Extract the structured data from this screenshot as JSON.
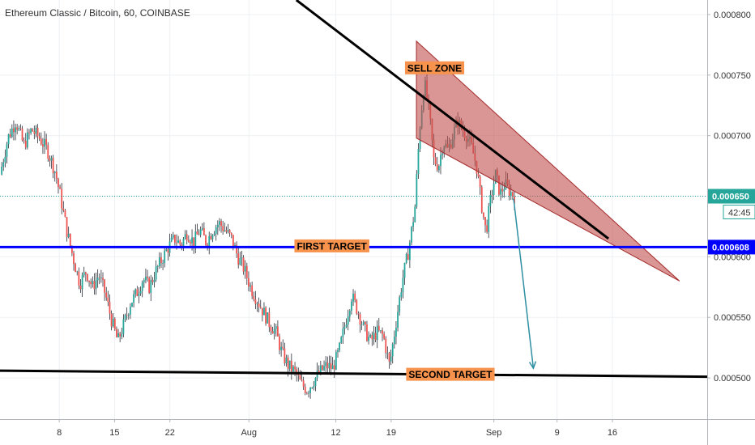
{
  "header": {
    "title": "Ethereum Classic / Bitcoin, 60, COINBASE"
  },
  "chart_data": {
    "type": "candlestick",
    "symbol": "Ethereum Classic / Bitcoin",
    "interval": "60",
    "exchange": "COINBASE",
    "x_ticks": [
      "8",
      "15",
      "22",
      "Aug",
      "12",
      "19",
      "Sep",
      "9",
      "16"
    ],
    "x_tick_days": [
      8,
      15,
      22,
      32,
      43,
      50,
      63,
      71,
      78
    ],
    "y_ticks": [
      "0.000500",
      "0.000550",
      "0.000600",
      "0.000650",
      "0.000700",
      "0.000750",
      "0.000800"
    ],
    "ylim": [
      0.000466,
      0.000812
    ],
    "xlim": [
      0.5,
      90
    ],
    "last_price": "0.000650",
    "countdown": "42:45",
    "first_target_price": "0.000608",
    "price_path": [
      [
        0.5,
        0.000668
      ],
      [
        1.5,
        0.000698
      ],
      [
        2.5,
        0.000712
      ],
      [
        3.5,
        0.000692
      ],
      [
        4.5,
        0.000705
      ],
      [
        5.5,
        0.000698
      ],
      [
        6.5,
        0.000688
      ],
      [
        7.5,
        0.00067
      ],
      [
        8.2,
        0.000648
      ],
      [
        9.0,
        0.00062
      ],
      [
        9.8,
        0.000598
      ],
      [
        10.6,
        0.000578
      ],
      [
        11.4,
        0.000588
      ],
      [
        12.2,
        0.000575
      ],
      [
        13.0,
        0.000585
      ],
      [
        13.8,
        0.00057
      ],
      [
        14.6,
        0.000548
      ],
      [
        15.4,
        0.00053
      ],
      [
        16.2,
        0.000545
      ],
      [
        17.0,
        0.000562
      ],
      [
        17.8,
        0.00057
      ],
      [
        18.6,
        0.000582
      ],
      [
        19.4,
        0.000575
      ],
      [
        20.2,
        0.000588
      ],
      [
        21.0,
        0.000598
      ],
      [
        21.8,
        0.000608
      ],
      [
        22.6,
        0.000615
      ],
      [
        23.4,
        0.00061
      ],
      [
        24.2,
        0.00062
      ],
      [
        25.0,
        0.000612
      ],
      [
        25.8,
        0.000622
      ],
      [
        26.6,
        0.000612
      ],
      [
        27.4,
        0.000622
      ],
      [
        28.2,
        0.000628
      ],
      [
        29.0,
        0.000622
      ],
      [
        29.8,
        0.000615
      ],
      [
        30.6,
        0.0006
      ],
      [
        31.4,
        0.00059
      ],
      [
        32.2,
        0.000575
      ],
      [
        33.0,
        0.000565
      ],
      [
        33.8,
        0.000555
      ],
      [
        34.6,
        0.000545
      ],
      [
        35.4,
        0.000538
      ],
      [
        36.2,
        0.00052
      ],
      [
        37.0,
        0.00051
      ],
      [
        37.8,
        0.000505
      ],
      [
        38.6,
        0.000495
      ],
      [
        39.4,
        0.00049
      ],
      [
        40.2,
        0.000498
      ],
      [
        41.0,
        0.000505
      ],
      [
        41.8,
        0.00051
      ],
      [
        42.6,
        0.000508
      ],
      [
        43.4,
        0.000522
      ],
      [
        44.2,
        0.000545
      ],
      [
        45.0,
        0.000568
      ],
      [
        45.8,
        0.000555
      ],
      [
        46.6,
        0.00054
      ],
      [
        47.4,
        0.00053
      ],
      [
        48.2,
        0.000538
      ],
      [
        49.0,
        0.000535
      ],
      [
        49.8,
        0.00051
      ],
      [
        50.6,
        0.000545
      ],
      [
        51.4,
        0.00058
      ],
      [
        52.2,
        0.000605
      ],
      [
        53.0,
        0.00064
      ],
      [
        53.6,
        0.000705
      ],
      [
        54.2,
        0.000745
      ],
      [
        54.8,
        0.00072
      ],
      [
        55.4,
        0.00068
      ],
      [
        56.0,
        0.000675
      ],
      [
        56.6,
        0.000695
      ],
      [
        57.2,
        0.000688
      ],
      [
        57.8,
        0.0007
      ],
      [
        58.4,
        0.000712
      ],
      [
        59.0,
        0.000705
      ],
      [
        59.6,
        0.0007
      ],
      [
        60.2,
        0.00069
      ],
      [
        60.8,
        0.000675
      ],
      [
        61.4,
        0.000645
      ],
      [
        62.0,
        0.00062
      ],
      [
        62.6,
        0.000648
      ],
      [
        63.2,
        0.000668
      ],
      [
        63.8,
        0.000652
      ],
      [
        64.4,
        0.00066
      ],
      [
        65.0,
        0.000654
      ],
      [
        65.6,
        0.00065
      ]
    ],
    "annotations": [
      {
        "label": "SELL ZONE",
        "x": 55.5,
        "y": 0.000756,
        "color": "#f7934c"
      },
      {
        "label": "FIRST TARGET",
        "x": 42.5,
        "y": 0.000609,
        "color": "#f7934c"
      },
      {
        "label": "SECOND TARGET",
        "x": 57.5,
        "y": 0.000503,
        "color": "#f7934c"
      }
    ],
    "sell_zone_triangle": [
      [
        53.2,
        0.000778
      ],
      [
        53.2,
        0.000698
      ],
      [
        86.5,
        0.00058
      ]
    ],
    "resistance_line": [
      [
        38.0,
        0.000812
      ],
      [
        77.5,
        0.000615
      ]
    ],
    "first_target_line": [
      [
        0.5,
        0.000608
      ],
      [
        90.0,
        0.000608
      ]
    ],
    "second_target_line": [
      [
        0.5,
        0.000506
      ],
      [
        90.0,
        0.000501
      ]
    ],
    "projection_arrow": [
      [
        65.5,
        0.000648
      ],
      [
        68.0,
        0.000508
      ]
    ],
    "colors": {
      "up": "#26a69a",
      "down": "#ef5350",
      "wick": "#2a2e39",
      "resistance": "#000000",
      "first_target": "#0000ff",
      "second_target": "#000000",
      "sell_zone_fill": "#c0504d",
      "sell_zone_stroke": "#a52a2a",
      "arrow": "#2e8fa3",
      "label_bg": "#f7934c",
      "last_price_tag": "#26a69a",
      "target_tag": "#0000ff",
      "grid": "#eef0f3"
    }
  }
}
